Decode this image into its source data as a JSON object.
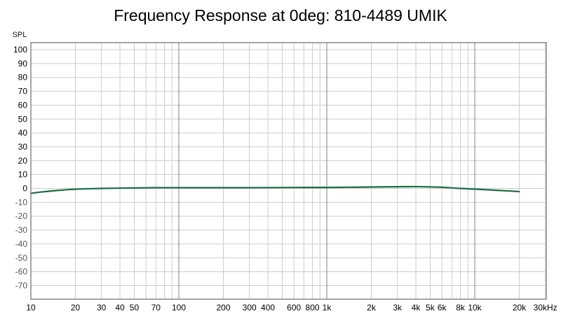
{
  "chart_data": {
    "type": "line",
    "title": "Frequency Response at 0deg: 810-4489 UMIK",
    "ylabel": "SPL",
    "xlabel": "",
    "x_scale": "log",
    "xlim": [
      10,
      30000
    ],
    "ylim": [
      -80,
      105
    ],
    "grid": true,
    "legend": "none",
    "y_ticks": [
      100,
      90,
      80,
      70,
      60,
      50,
      40,
      30,
      20,
      10,
      0,
      -10,
      -20,
      -30,
      -40,
      -50,
      -60,
      -70
    ],
    "x_ticks": [
      {
        "value": 10,
        "label": "10"
      },
      {
        "value": 20,
        "label": "20"
      },
      {
        "value": 30,
        "label": "30"
      },
      {
        "value": 40,
        "label": "40"
      },
      {
        "value": 50,
        "label": "50"
      },
      {
        "value": 70,
        "label": "70"
      },
      {
        "value": 100,
        "label": "100"
      },
      {
        "value": 200,
        "label": "200"
      },
      {
        "value": 300,
        "label": "300"
      },
      {
        "value": 400,
        "label": "400"
      },
      {
        "value": 600,
        "label": "600"
      },
      {
        "value": 800,
        "label": "800"
      },
      {
        "value": 1000,
        "label": "1k"
      },
      {
        "value": 2000,
        "label": "2k"
      },
      {
        "value": 3000,
        "label": "3k"
      },
      {
        "value": 4000,
        "label": "4k"
      },
      {
        "value": 5000,
        "label": "5k"
      },
      {
        "value": 6000,
        "label": "6k"
      },
      {
        "value": 8000,
        "label": "8k"
      },
      {
        "value": 10000,
        "label": "10k"
      },
      {
        "value": 20000,
        "label": "20k"
      },
      {
        "value": 30000,
        "label": "30kHz"
      }
    ],
    "series": [
      {
        "color": "#1a6e40",
        "x": [
          10,
          12,
          15,
          20,
          30,
          50,
          70,
          100,
          200,
          300,
          500,
          700,
          1000,
          2000,
          3000,
          4000,
          5000,
          6000,
          7000,
          8000,
          10000,
          15000,
          20000
        ],
        "y": [
          -3.5,
          -2.5,
          -1.5,
          -0.6,
          0.0,
          0.3,
          0.5,
          0.5,
          0.5,
          0.5,
          0.6,
          0.7,
          0.7,
          1.0,
          1.2,
          1.3,
          1.1,
          0.8,
          0.4,
          0.0,
          -0.5,
          -1.5,
          -2.3
        ]
      }
    ]
  },
  "colors": {
    "frame": "#888888",
    "grid": "#cccccc",
    "decade_line": "#808080",
    "ytick_major": "#000000",
    "ytick_minor": "#555555"
  }
}
